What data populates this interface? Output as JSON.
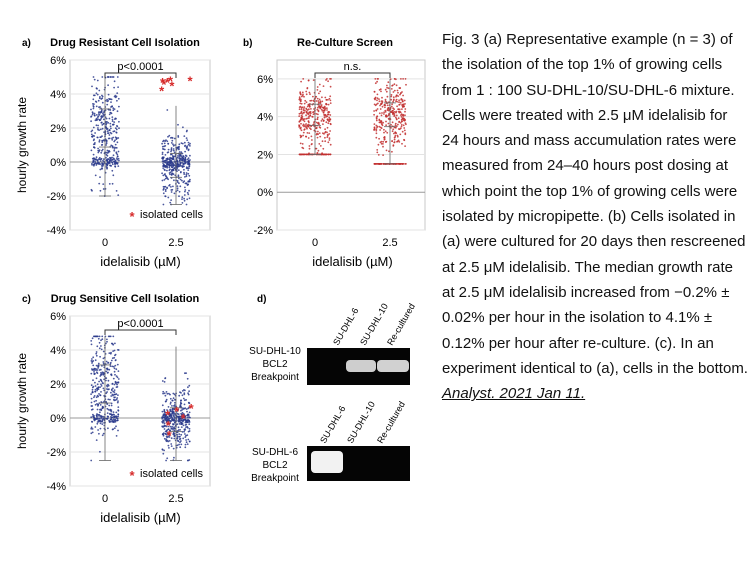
{
  "chart_data": [
    {
      "type": "scatter",
      "panel_label": "a)",
      "title": "Drug Resistant Cell Isolation",
      "ylabel": "hourly growth rate",
      "xlabel": "idelalisib (µM)",
      "categories": [
        "0",
        "2.5"
      ],
      "ylim": [
        -4,
        6
      ],
      "yticks": [
        "-4%",
        "-2%",
        "0%",
        "2%",
        "4%",
        "6%"
      ],
      "ytick_values": [
        -4,
        -2,
        0,
        2,
        4,
        6
      ],
      "significance": "p<0.0001",
      "legend": "isolated cells",
      "colors": {
        "points": "#2a3a8c",
        "isolated": "#d62a2a"
      },
      "series": [
        {
          "name": "0 µM",
          "center": 2.0,
          "spread": 1.6,
          "min": -2.0,
          "max": 5.0
        },
        {
          "name": "2.5 µM",
          "center": -0.2,
          "spread": 1.0,
          "min": -2.5,
          "max": 3.3
        },
        {
          "name": "isolated cells",
          "x": [
            1,
            1,
            1,
            1,
            1,
            1,
            1
          ],
          "y": [
            4.7,
            4.8,
            4.6,
            4.8,
            4.5,
            4.2,
            4.7
          ]
        }
      ]
    },
    {
      "type": "scatter",
      "panel_label": "b)",
      "title": "Re-Culture Screen",
      "ylabel": "hourly growth rate",
      "xlabel": "idelalisib (µM)",
      "categories": [
        "0",
        "2.5"
      ],
      "ylim": [
        -2,
        7
      ],
      "yticks": [
        "-2%",
        "0%",
        "2%",
        "4%",
        "6%"
      ],
      "ytick_values": [
        -2,
        0,
        2,
        4,
        6
      ],
      "significance": "n.s.",
      "colors": {
        "points": "#c23030"
      },
      "series": [
        {
          "name": "0 µM",
          "center": 4.1,
          "spread": 0.8,
          "min": 2.0,
          "max": 6.0
        },
        {
          "name": "2.5 µM",
          "center": 4.1,
          "spread": 0.9,
          "min": 1.5,
          "max": 6.0
        }
      ]
    },
    {
      "type": "scatter",
      "panel_label": "c)",
      "title": "Drug Sensitive Cell Isolation",
      "ylabel": "hourly growth rate",
      "xlabel": "idelalisib (µM)",
      "categories": [
        "0",
        "2.5"
      ],
      "ylim": [
        -4,
        6
      ],
      "yticks": [
        "-4%",
        "-2%",
        "0%",
        "2%",
        "4%",
        "6%"
      ],
      "ytick_values": [
        -4,
        -2,
        0,
        2,
        4,
        6
      ],
      "significance": "p<0.0001",
      "legend": "isolated cells",
      "colors": {
        "points": "#2a3a8c",
        "isolated": "#d62a2a"
      },
      "series": [
        {
          "name": "0 µM",
          "center": 2.0,
          "spread": 1.6,
          "min": -2.5,
          "max": 4.8
        },
        {
          "name": "2.5 µM",
          "center": -0.1,
          "spread": 1.0,
          "min": -2.5,
          "max": 4.2
        },
        {
          "name": "isolated cells",
          "x": [
            1,
            1,
            1,
            1,
            1,
            1
          ],
          "y": [
            0.2,
            -0.4,
            0.6,
            -1.0,
            0.0,
            0.4
          ]
        }
      ]
    }
  ],
  "gel": {
    "panel_label": "d)",
    "lanes": [
      "SU-DHL-6",
      "SU-DHL-10",
      "Re-cultured"
    ],
    "top_label": [
      "SU-DHL-10",
      "BCL2",
      "Breakpoint"
    ],
    "bottom_label": [
      "SU-DHL-6",
      "BCL2",
      "Breakpoint"
    ]
  },
  "caption": {
    "text": "Fig. 3 (a) Representative example (n = 3) of the isolation of the top 1% of growing cells from 1 : 100 SU-DHL-10/SU-DHL-6 mixture. Cells were treated with 2.5 μM idelalisib for 24 hours and mass accumulation rates were measured from 24–40 hours post dosing at which point the top 1% of growing cells were isolated by micropipette. (b) Cells isolated in (a) were cultured for 20 days then rescreened at 2.5 μM idelalisib. The median growth rate at 2.5 μM idelalisib increased from −0.2% ± 0.02% per hour in the isolation to 4.1% ± 0.12% per hour after re-culture. (c). In an experiment identical to (a), cells in the bottom.",
    "citation": "Analyst. 2021 Jan 11."
  }
}
